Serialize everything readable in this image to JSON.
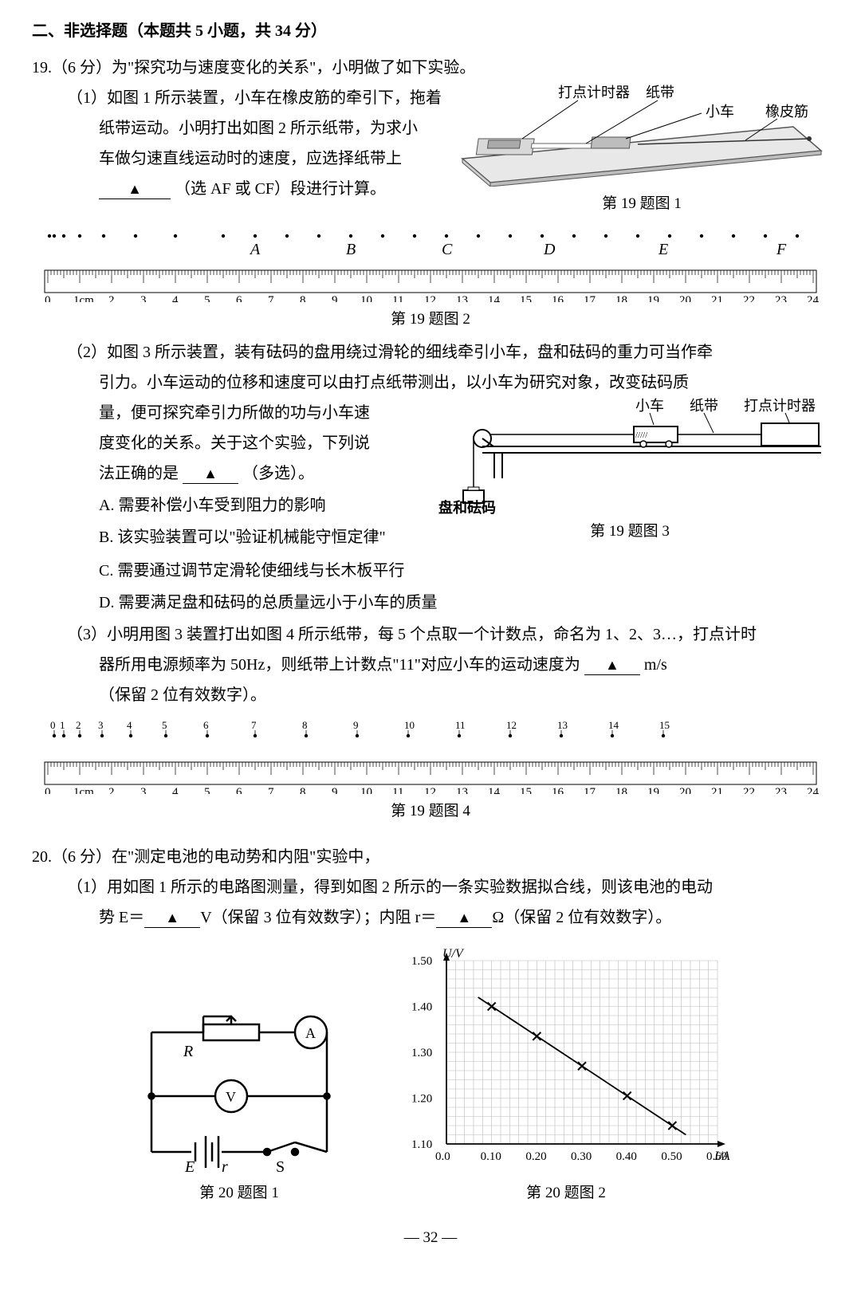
{
  "section_title": "二、非选择题（本题共 5 小题，共 34 分）",
  "q19": {
    "num": "19.",
    "pts": "（6 分）",
    "stem": "为\"探究功与速度变化的关系\"，小明做了如下实验。",
    "p1a": "（1）如图 1 所示装置，小车在橡皮筋的牵引下，拖着",
    "p1b": "纸带运动。小明打出如图 2 所示纸带，为求小",
    "p1c": "车做匀速直线运动时的速度，应选择纸带上",
    "p1d_tail": "（选 AF 或 CF）段进行计算。",
    "fig1_labels": {
      "timer": "打点计时器",
      "tape": "纸带",
      "cart": "小车",
      "band": "橡皮筋"
    },
    "fig1_cap": "第 19 题图 1",
    "ruler2_lettersAF": [
      "A",
      "B",
      "C",
      "D",
      "E",
      "F"
    ],
    "ruler2_nums": [
      "0",
      "1cm",
      "2",
      "3",
      "4",
      "5",
      "6",
      "7",
      "8",
      "9",
      "10",
      "11",
      "12",
      "13",
      "14",
      "15",
      "16",
      "17",
      "18",
      "19",
      "20",
      "21",
      "22",
      "23",
      "24"
    ],
    "fig2_cap": "第 19 题图 2",
    "p2a": "（2）如图 3 所示装置，装有砝码的盘用绕过滑轮的细线牵引小车，盘和砝码的重力可当作牵",
    "p2b": "引力。小车运动的位移和速度可以由打点纸带测出，以小车为研究对象，改变砝码质",
    "p2c": "量，便可探究牵引力所做的功与小车速",
    "p2d": "度变化的关系。关于这个实验，下列说",
    "p2e_head": "法正确的是",
    "p2e_tail": "（多选）。",
    "fig3_labels": {
      "cart": "小车",
      "tape": "纸带",
      "timer": "打点计时器",
      "pan": "盘和砝码"
    },
    "fig3_cap": "第 19 题图 3",
    "optA": "A. 需要补偿小车受到阻力的影响",
    "optB": "B. 该实验装置可以\"验证机械能守恒定律\"",
    "optC": "C. 需要通过调节定滑轮使细线与长木板平行",
    "optD": "D. 需要满足盘和砝码的总质量远小于小车的质量",
    "p3a": "（3）小明用图 3 装置打出如图 4 所示纸带，每 5 个点取一个计数点，命名为 1、2、3…，打点计时",
    "p3b_head": "器所用电源频率为 50Hz，则纸带上计数点\"11\"对应小车的运动速度为",
    "p3b_unit": "m/s",
    "p3c": "（保留 2 位有效数字）。",
    "ruler4_top": [
      "0",
      "1",
      "2",
      "3",
      "4",
      "5",
      "6",
      "7",
      "8",
      "9",
      "10",
      "11",
      "12",
      "13",
      "14",
      "15"
    ],
    "fig4_cap": "第 19 题图 4"
  },
  "q20": {
    "num": "20.",
    "pts": "（6 分）",
    "stem": "在\"测定电池的电动势和内阻\"实验中，",
    "p1a": "（1）用如图 1 所示的电路图测量，得到如图 2 所示的一条实验数据拟合线，则该电池的电动",
    "p1b_head": "势 E＝",
    "p1b_mid": "V（保留 3 位有效数字）；内阻 r＝",
    "p1b_tail": "Ω（保留 2 位有效数字）。",
    "circuit": {
      "R": "R",
      "A": "A",
      "V": "V",
      "E": "E",
      "r": "r",
      "S": "S"
    },
    "fig1_cap": "第 20 题图 1",
    "chart": {
      "ylabel": "U/V",
      "xlabel": "I/A",
      "yticks": [
        "1.10",
        "1.20",
        "1.30",
        "1.40",
        "1.50"
      ],
      "yvals": [
        1.1,
        1.2,
        1.3,
        1.4,
        1.5
      ],
      "xticks": [
        "0.0",
        "0.10",
        "0.20",
        "0.30",
        "0.40",
        "0.50",
        "0.60"
      ],
      "xvals": [
        0.0,
        0.1,
        0.2,
        0.3,
        0.4,
        0.5,
        0.6
      ],
      "points": [
        {
          "x": 0.1,
          "y": 1.4
        },
        {
          "x": 0.2,
          "y": 1.335
        },
        {
          "x": 0.3,
          "y": 1.27
        },
        {
          "x": 0.4,
          "y": 1.205
        },
        {
          "x": 0.5,
          "y": 1.14
        }
      ],
      "line_x1": 0.07,
      "line_y1": 1.42,
      "line_x2": 0.53,
      "line_y2": 1.12,
      "bg": "#ffffff",
      "grid": "#bbbbbb",
      "axis": "#000000",
      "marker": "#000000"
    },
    "fig2_cap": "第 20 题图 2"
  },
  "page": "— 32 —",
  "tri": "▲"
}
